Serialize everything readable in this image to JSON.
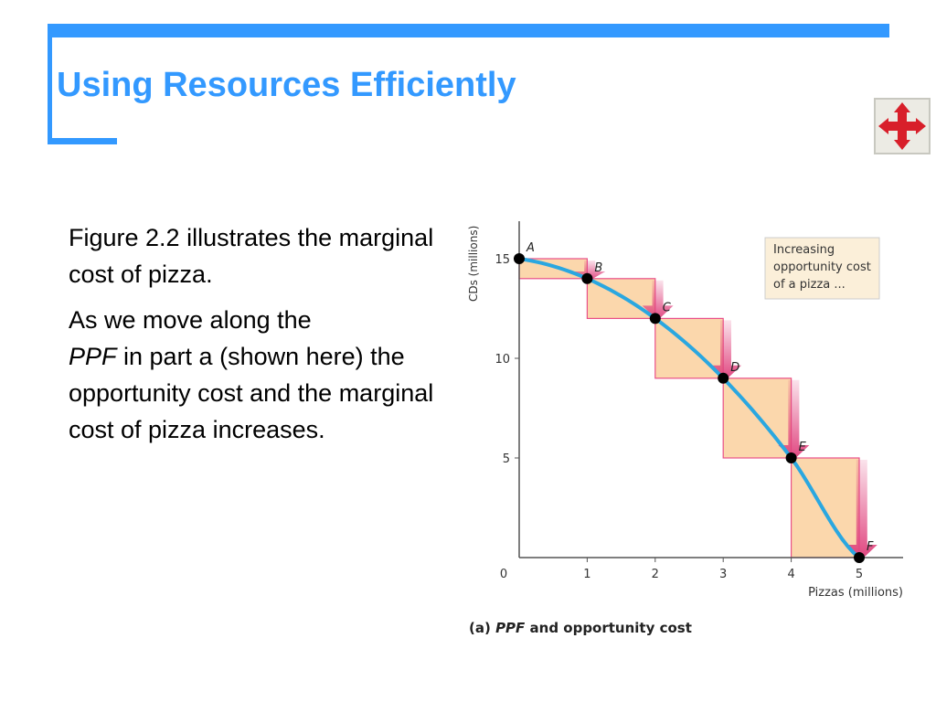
{
  "slide": {
    "title": "Using Resources Efficiently",
    "paragraph1": "Figure 2.2 illustrates the marginal cost of pizza.",
    "paragraph2_prefix": "As we move along the",
    "paragraph2_ppf": "PPF",
    "paragraph2_rest": " in part a (shown here) the opportunity cost and the marginal cost of pizza increases.",
    "nav_icon": "four-way-arrow-icon"
  },
  "colors": {
    "accent": "#3399ff",
    "curve": "#2aa7e0",
    "step_fill": "#fbd7ac",
    "step_border": "#e94f88",
    "arrow": "#e0457f",
    "nav_arrow": "#d81f2a"
  },
  "chart_data": {
    "type": "line",
    "ylabel": "CDs (millions)",
    "xlabel": "Pizzas (millions)",
    "xlim": [
      0,
      5
    ],
    "ylim": [
      0,
      15
    ],
    "x_ticks": [
      "0",
      "1",
      "2",
      "3",
      "4",
      "5"
    ],
    "y_ticks": [
      "5",
      "10",
      "15"
    ],
    "points": [
      {
        "label": "A",
        "x": 0,
        "y": 15
      },
      {
        "label": "B",
        "x": 1,
        "y": 14
      },
      {
        "label": "C",
        "x": 2,
        "y": 12
      },
      {
        "label": "D",
        "x": 3,
        "y": 9
      },
      {
        "label": "E",
        "x": 4,
        "y": 5
      },
      {
        "label": "F",
        "x": 5,
        "y": 0
      }
    ],
    "annotation": "Increasing opportunity cost of a pizza ...",
    "caption_prefix": "(a) ",
    "caption_ppf": "PPF",
    "caption_rest": " and opportunity cost"
  }
}
